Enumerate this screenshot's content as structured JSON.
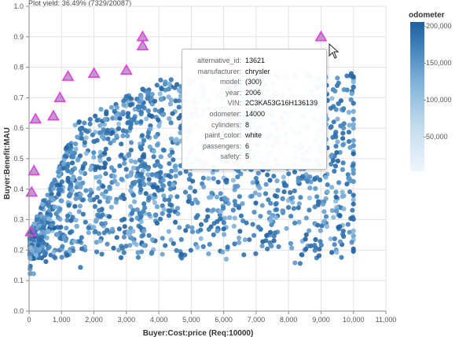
{
  "caption": "Plot yield: 36.49% (7329/20087)",
  "chart_data": {
    "type": "scatter",
    "xlabel": "Buyer:Cost:price (Req:10000)",
    "ylabel": "Buyer:Benefit:MAU",
    "xlim": [
      0,
      11000
    ],
    "ylim": [
      0,
      1.0
    ],
    "x_ticks": [
      "0",
      "1,000",
      "2,000",
      "3,000",
      "4,000",
      "5,000",
      "6,000",
      "7,000",
      "8,000",
      "9,000",
      "10,000",
      "11,000"
    ],
    "y_ticks": [
      "0.0",
      "0.1",
      "0.2",
      "0.3",
      "0.4",
      "0.5",
      "0.6",
      "0.7",
      "0.8",
      "0.9",
      "1.0"
    ],
    "grid": true,
    "color_encoding": {
      "field": "odometer",
      "range": [
        0,
        200000
      ],
      "low_color": "#eef5fc",
      "high_color": "#1f5f9d",
      "ticks": [
        "50,000",
        "100,000",
        "150,000",
        "200,000"
      ]
    },
    "pareto_points": [
      {
        "x": 50,
        "y": 0.26
      },
      {
        "x": 80,
        "y": 0.39
      },
      {
        "x": 150,
        "y": 0.46
      },
      {
        "x": 200,
        "y": 0.63
      },
      {
        "x": 750,
        "y": 0.64
      },
      {
        "x": 950,
        "y": 0.7
      },
      {
        "x": 1200,
        "y": 0.77
      },
      {
        "x": 2000,
        "y": 0.78
      },
      {
        "x": 3000,
        "y": 0.79
      },
      {
        "x": 3500,
        "y": 0.87
      },
      {
        "x": 3500,
        "y": 0.9
      },
      {
        "x": 9000,
        "y": 0.9
      }
    ],
    "pareto_marker": {
      "fill": "#8a4a9e",
      "stroke": "#e040e0"
    },
    "point_color": "#3a7fba"
  },
  "legend": {
    "title": "odometer",
    "ticks": [
      "200,000",
      "150,000",
      "100,000",
      "50,000"
    ]
  },
  "tooltip": {
    "rows": [
      {
        "key": "alternative_id:",
        "value": "13621"
      },
      {
        "key": "manufacturer:",
        "value": "chrysler"
      },
      {
        "key": "model:",
        "value": "(300)"
      },
      {
        "key": "year:",
        "value": "2006"
      },
      {
        "key": "VIN:",
        "value": "2C3KA53G16H136139"
      },
      {
        "key": "odometer:",
        "value": "14000"
      },
      {
        "key": "cylinders:",
        "value": "8"
      },
      {
        "key": "paint_color:",
        "value": "white"
      },
      {
        "key": "passengers:",
        "value": "6"
      },
      {
        "key": "safety:",
        "value": "5"
      }
    ]
  }
}
